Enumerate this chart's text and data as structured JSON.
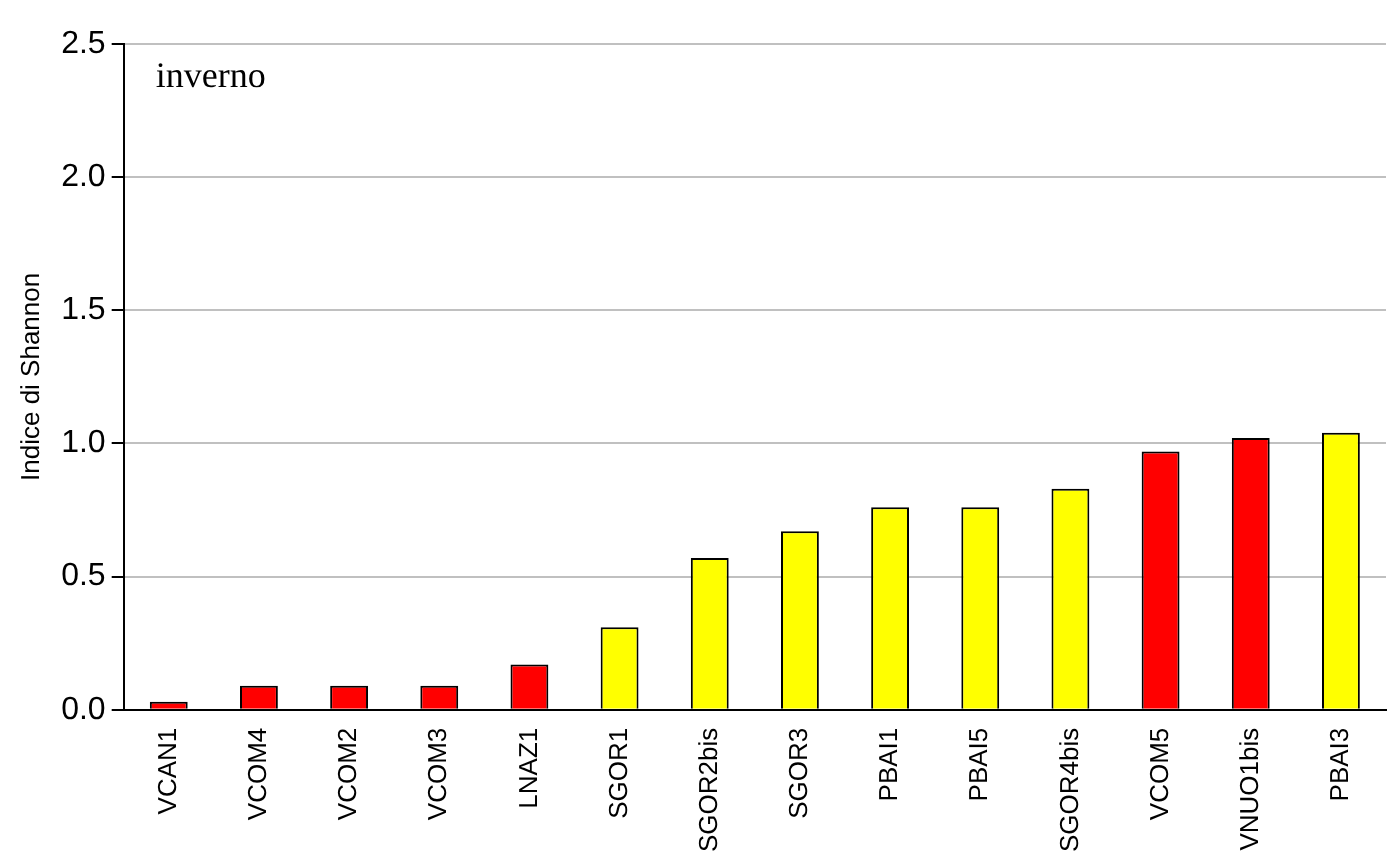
{
  "chart_data": {
    "type": "bar",
    "ylabel": "Indice di Shannon",
    "annotations": [
      "inverno"
    ],
    "categories": [
      "VCAN1",
      "VCOM4",
      "VCOM2",
      "VCOM3",
      "LNAZ1",
      "SGOR1",
      "SGOR2bis",
      "SGOR3",
      "PBAI1",
      "PBAI5",
      "SGOR4bis",
      "VCOM5",
      "VNUO1bis",
      "PBAI3"
    ],
    "values": [
      0.03,
      0.09,
      0.09,
      0.09,
      0.17,
      0.31,
      0.57,
      0.67,
      0.76,
      0.76,
      0.83,
      0.97,
      1.02,
      1.04
    ],
    "colors": [
      "#ff0000",
      "#ff0000",
      "#ff0000",
      "#ff0000",
      "#ff0000",
      "#ffff00",
      "#ffff00",
      "#ffff00",
      "#ffff00",
      "#ffff00",
      "#ffff00",
      "#ff0000",
      "#ff0000",
      "#ffff00"
    ],
    "ylim": [
      0,
      2.5
    ],
    "yticks": [
      {
        "value": 0,
        "label": "0.0"
      },
      {
        "value": 0.5,
        "label": "0.5"
      },
      {
        "value": 1,
        "label": "1.0"
      },
      {
        "value": 1.5,
        "label": "1.5"
      },
      {
        "value": 2,
        "label": "2.0"
      },
      {
        "value": 2.5,
        "label": "2.5"
      }
    ],
    "grid": "y",
    "legend": false
  }
}
